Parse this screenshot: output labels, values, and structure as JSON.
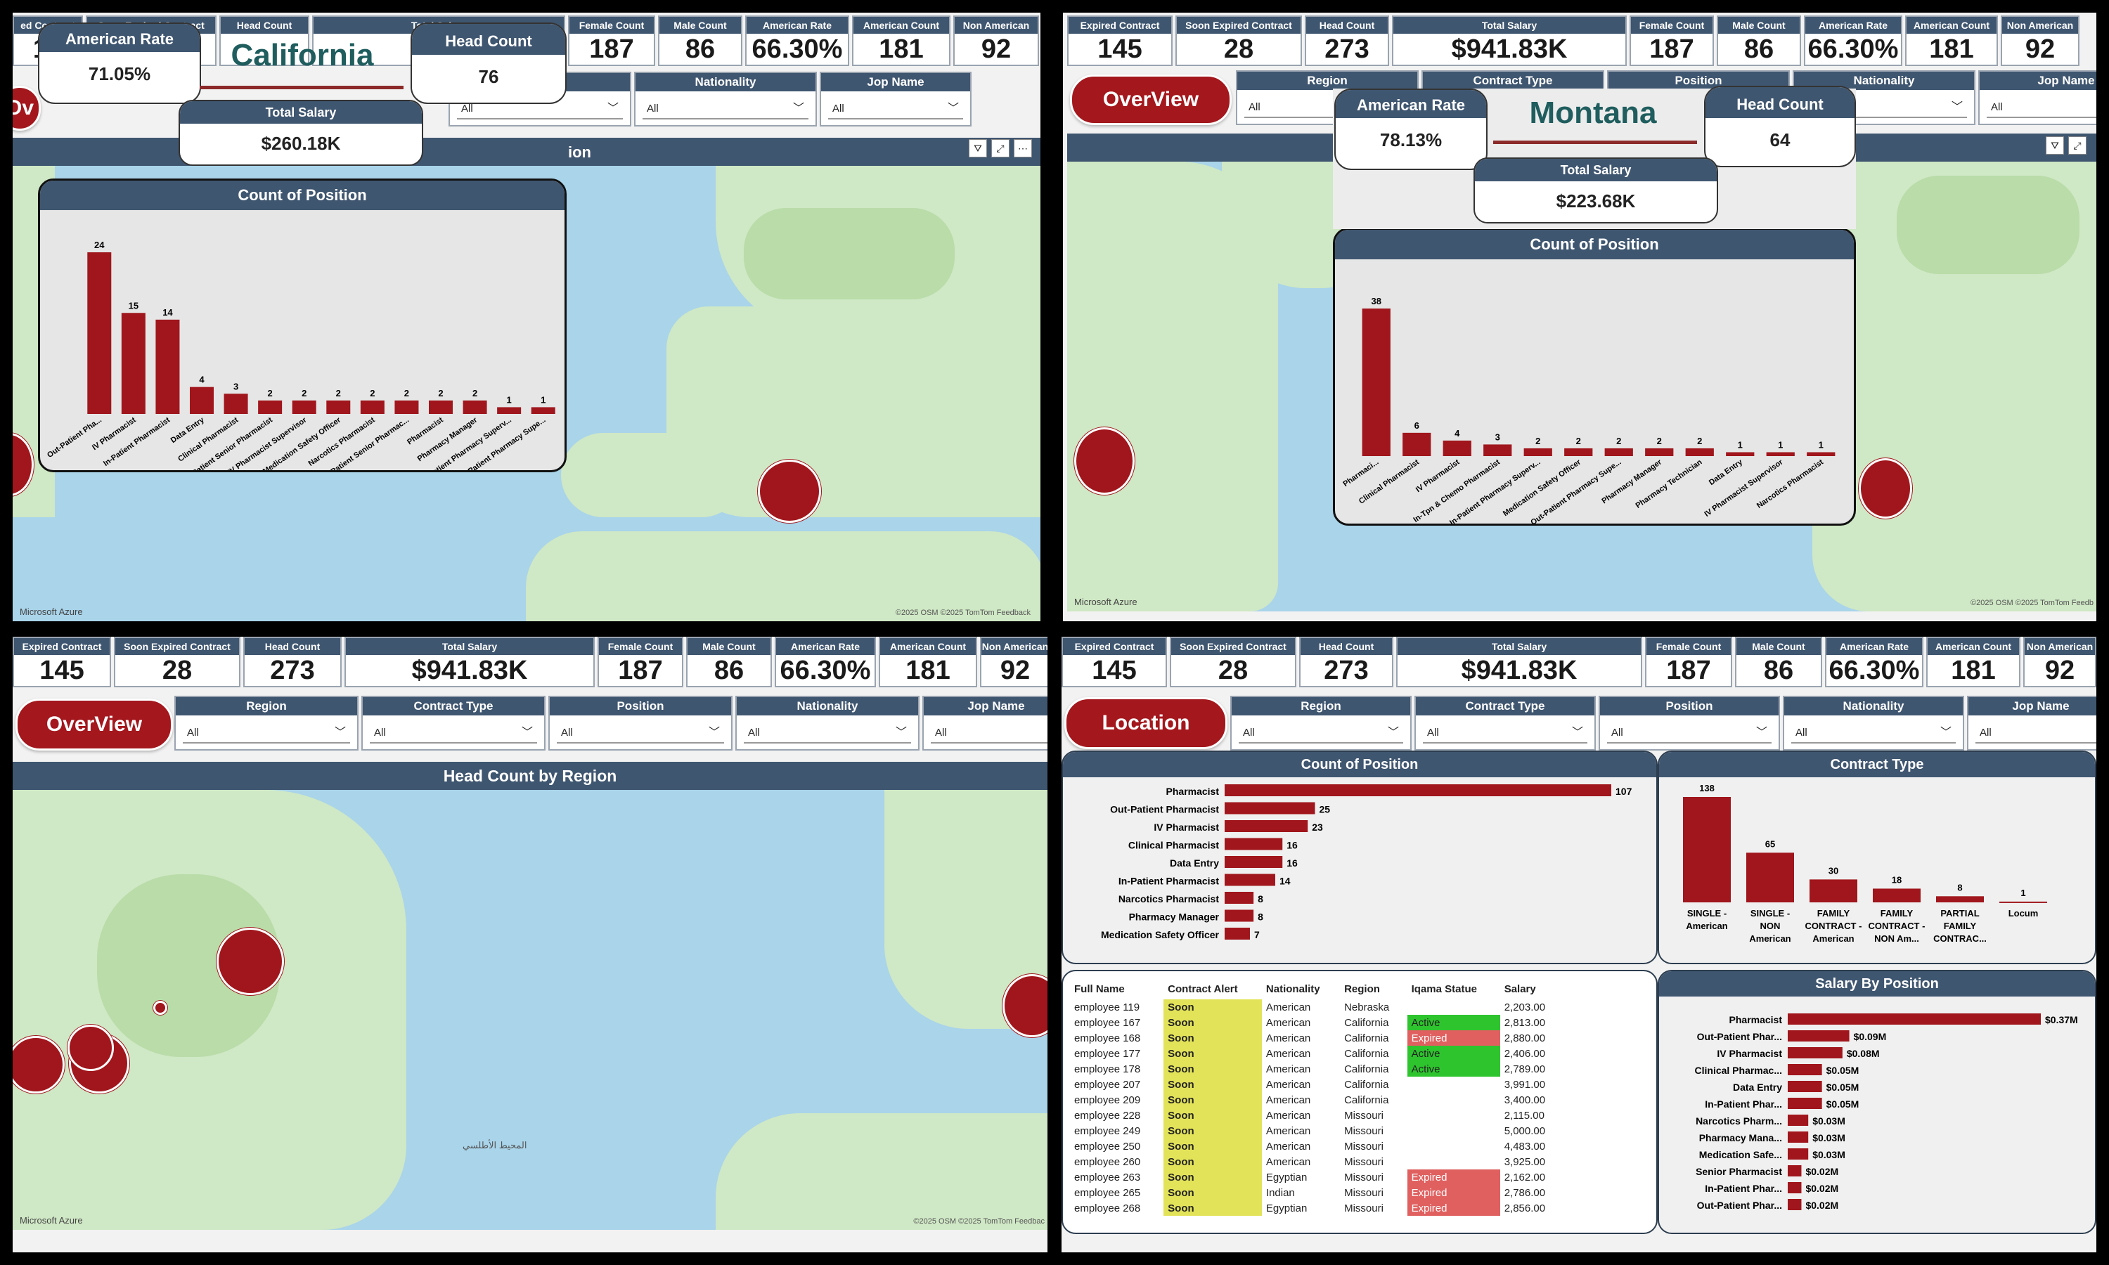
{
  "kpis": [
    {
      "label": "Expired Contract",
      "value": "145"
    },
    {
      "label": "Soon Expired Contract",
      "value": "28"
    },
    {
      "label": "Head Count",
      "value": "273"
    },
    {
      "label": "Total Salary",
      "value": "$941.83K"
    },
    {
      "label": "Female Count",
      "value": "187"
    },
    {
      "label": "Male Count",
      "value": "86"
    },
    {
      "label": "American Rate",
      "value": "66.30%"
    },
    {
      "label": "American Count",
      "value": "181"
    },
    {
      "label": "Non American",
      "value": "92"
    }
  ],
  "filters": [
    {
      "label": "Region",
      "value": "All"
    },
    {
      "label": "Contract Type",
      "value": "All"
    },
    {
      "label": "Position",
      "value": "All"
    },
    {
      "label": "Nationality",
      "value": "All"
    },
    {
      "label": "Jop Name",
      "value": "All"
    }
  ],
  "q1": {
    "kpi_partial": {
      "label": "ed Contract",
      "value": "14"
    },
    "page_button": "Ov",
    "map_title": "ion",
    "state": "California",
    "american_rate_label": "American Rate",
    "american_rate": "71.05%",
    "head_count_label": "Head Count",
    "head_count": "76",
    "total_salary_label": "Total Salary",
    "total_salary": "$260.18K",
    "chart_title": "Count of Position",
    "credit_ms": "Microsoft Azure",
    "credit_osm": "©2025 OSM ©2025 TomTom Feedback"
  },
  "q2": {
    "page_button": "OverView",
    "state": "Montana",
    "american_rate_label": "American Rate",
    "american_rate": "78.13%",
    "head_count_label": "Head Count",
    "head_count": "64",
    "total_salary_label": "Total Salary",
    "total_salary": "$223.68K",
    "chart_title": "Count of Position",
    "credit_ms": "Microsoft Azure",
    "credit_osm": "©2025 OSM ©2025 TomTom Feedb"
  },
  "q3": {
    "page_button": "OverView",
    "map_title": "Head Count by Region",
    "credit_ms": "Microsoft Azure",
    "credit_osm": "©2025 OSM ©2025 TomTom Feedbac",
    "ocean_label": "المحيط الأطلسي"
  },
  "q4": {
    "page_button": "Location",
    "count_title": "Count of Position",
    "contract_title": "Contract Type",
    "salary_title": "Salary By Position",
    "table_headers": [
      "Full Name",
      "Contract Alert",
      "Nationality",
      "Region",
      "Iqama Statue",
      "Salary"
    ],
    "table_rows": [
      [
        "employee 119",
        "Soon",
        "American",
        "Nebraska",
        "",
        "2,203.00"
      ],
      [
        "employee 167",
        "Soon",
        "American",
        "California",
        "Active",
        "2,813.00"
      ],
      [
        "employee 168",
        "Soon",
        "American",
        "California",
        "Expired",
        "2,880.00"
      ],
      [
        "employee 177",
        "Soon",
        "American",
        "California",
        "Active",
        "2,406.00"
      ],
      [
        "employee 178",
        "Soon",
        "American",
        "California",
        "Active",
        "2,789.00"
      ],
      [
        "employee 207",
        "Soon",
        "American",
        "California",
        "",
        "3,991.00"
      ],
      [
        "employee 209",
        "Soon",
        "American",
        "California",
        "",
        "3,400.00"
      ],
      [
        "employee 228",
        "Soon",
        "American",
        "Missouri",
        "",
        "2,115.00"
      ],
      [
        "employee 249",
        "Soon",
        "American",
        "Missouri",
        "",
        "5,000.00"
      ],
      [
        "employee 250",
        "Soon",
        "American",
        "Missouri",
        "",
        "4,483.00"
      ],
      [
        "employee 260",
        "Soon",
        "American",
        "Missouri",
        "",
        "3,925.00"
      ],
      [
        "employee 263",
        "Soon",
        "Egyptian",
        "Missouri",
        "Expired",
        "2,162.00"
      ],
      [
        "employee 265",
        "Soon",
        "Indian",
        "Missouri",
        "Expired",
        "2,786.00"
      ],
      [
        "employee 268",
        "Soon",
        "Egyptian",
        "Missouri",
        "Expired",
        "2,856.00"
      ]
    ]
  },
  "chart_data": [
    {
      "type": "bar",
      "title": "Count of Position",
      "categories": [
        "Out-Patient Pha...",
        "IV Pharmacist",
        "In-Patient Pharmacist",
        "Data Entry",
        "Clinical Pharmacist",
        "In-Patient Senior Pharmacist",
        "IV Pharmacist Supervisor",
        "Medication Safety Officer",
        "Narcotics Pharmacist",
        "Out-Patient Senior Pharmac...",
        "Pharmacist",
        "Pharmacy Manager",
        "In-Patient Pharmacy Superv...",
        "Out-Patient Pharmacy Supe..."
      ],
      "values": [
        24,
        15,
        14,
        4,
        3,
        2,
        2,
        2,
        2,
        2,
        2,
        2,
        1,
        1
      ]
    },
    {
      "type": "bar",
      "title": "Count of Position",
      "categories": [
        "Pharmaci...",
        "Clinical Pharmacist",
        "IV Pharmacist",
        "In-Tpn & Chemo Pharmacist",
        "In-Patient Pharmacy Superv...",
        "Medication Safety Officer",
        "Out-Patient Pharmacy Supe...",
        "Pharmacy Manager",
        "Pharmacy Technician",
        "Data Entry",
        "IV Pharmacist Supervisor",
        "Narcotics Pharmacist"
      ],
      "values": [
        38,
        6,
        4,
        3,
        2,
        2,
        2,
        2,
        2,
        1,
        1,
        1
      ]
    },
    {
      "type": "bar",
      "orientation": "horizontal",
      "title": "Count of Position",
      "categories": [
        "Pharmacist",
        "Out-Patient Pharmacist",
        "IV Pharmacist",
        "Clinical Pharmacist",
        "Data Entry",
        "In-Patient Pharmacist",
        "Narcotics Pharmacist",
        "Pharmacy Manager",
        "Medication Safety Officer"
      ],
      "values": [
        107,
        25,
        23,
        16,
        16,
        14,
        8,
        8,
        7
      ]
    },
    {
      "type": "bar",
      "title": "Contract Type",
      "categories": [
        "SINGLE - American",
        "SINGLE - NON American",
        "FAMILY CONTRACT - American",
        "FAMILY CONTRACT - NON Am...",
        "PARTIAL FAMILY CONTRAC...",
        "Locum"
      ],
      "values": [
        138,
        65,
        30,
        18,
        8,
        1
      ]
    },
    {
      "type": "bar",
      "orientation": "horizontal",
      "title": "Salary By Position",
      "categories": [
        "Pharmacist",
        "Out-Patient Phar...",
        "IV Pharmacist",
        "Clinical Pharmac...",
        "Data Entry",
        "In-Patient Phar...",
        "Narcotics Pharm...",
        "Pharmacy Mana...",
        "Medication Safe...",
        "Senior Pharmacist",
        "In-Patient Phar...",
        "Out-Patient Phar..."
      ],
      "labels": [
        "$0.37M",
        "$0.09M",
        "$0.08M",
        "$0.05M",
        "$0.05M",
        "$0.05M",
        "$0.03M",
        "$0.03M",
        "$0.03M",
        "$0.02M",
        "$0.02M",
        "$0.02M"
      ],
      "values": [
        0.37,
        0.09,
        0.08,
        0.05,
        0.05,
        0.05,
        0.03,
        0.03,
        0.03,
        0.02,
        0.02,
        0.02
      ]
    }
  ],
  "colors": {
    "bar": "#a0161c",
    "header": "#3f5670",
    "soon": "#e3e35a",
    "active": "#2ec42e",
    "expired": "#e06060"
  },
  "icons": [
    "filter-icon",
    "expand-icon",
    "more-icon",
    "chevron-down-icon"
  ]
}
